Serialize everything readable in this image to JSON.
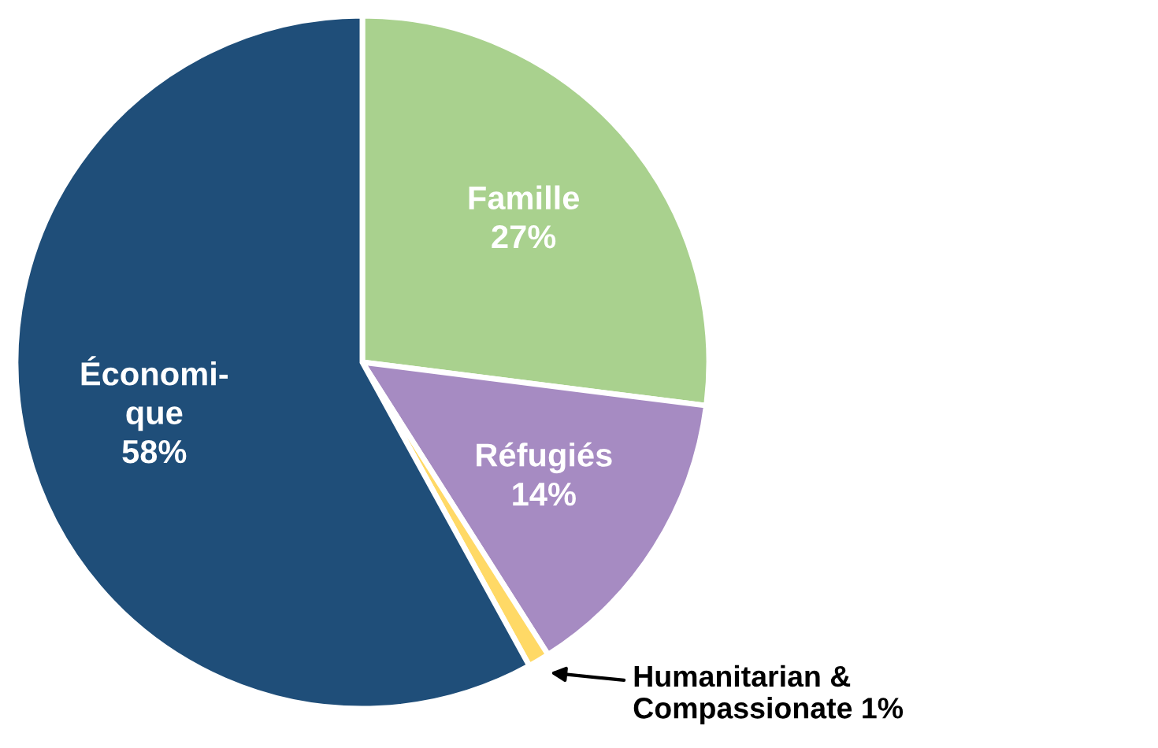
{
  "chart_data": {
    "type": "pie",
    "categories": [
      "Famille",
      "Réfugiés",
      "Humanitarian &\nCompassionate",
      "Économi-\nque"
    ],
    "values": [
      27,
      14,
      1,
      58
    ],
    "value_labels": [
      "27%",
      "14%",
      "1%",
      "58%"
    ],
    "colors": [
      "#a9d18e",
      "#a68bc2",
      "#ffd966",
      "#1f4e79"
    ],
    "legend": false
  }
}
